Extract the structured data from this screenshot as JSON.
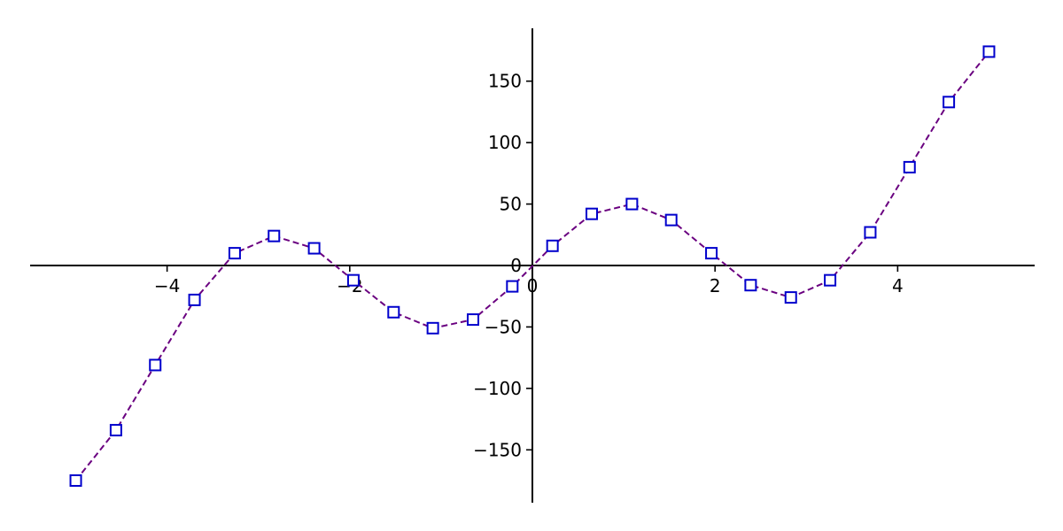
{
  "chart_data": {
    "type": "line",
    "x_ticks": [
      -4,
      -2,
      0,
      2,
      4
    ],
    "x_tick_labels": [
      "−4",
      "−2",
      "0",
      "2",
      "4"
    ],
    "y_ticks": [
      -150,
      -100,
      -50,
      0,
      50,
      100,
      150
    ],
    "y_tick_labels": [
      "−150",
      "−100",
      "−50",
      "0",
      "50",
      "100",
      "150"
    ],
    "xlim": [
      -5.5,
      5.5
    ],
    "ylim": [
      -193,
      193
    ],
    "grid": false,
    "legend": "none",
    "line_color": "#6a0080",
    "line_style": "dashed",
    "marker": "square",
    "marker_color": "#0000cc",
    "x": [
      -5.0,
      -4.56,
      -4.13,
      -3.7,
      -3.26,
      -2.83,
      -2.39,
      -1.96,
      -1.52,
      -1.09,
      -0.65,
      -0.22,
      0.22,
      0.65,
      1.09,
      1.52,
      1.96,
      2.39,
      2.83,
      3.26,
      3.7,
      4.13,
      4.56,
      5.0
    ],
    "y": [
      -175,
      -134,
      -81,
      -28,
      10,
      24,
      14,
      -12,
      -38,
      -51,
      -44,
      -17,
      16,
      42,
      50,
      37,
      10,
      -16,
      -26,
      -12,
      27,
      80,
      133,
      174
    ]
  }
}
